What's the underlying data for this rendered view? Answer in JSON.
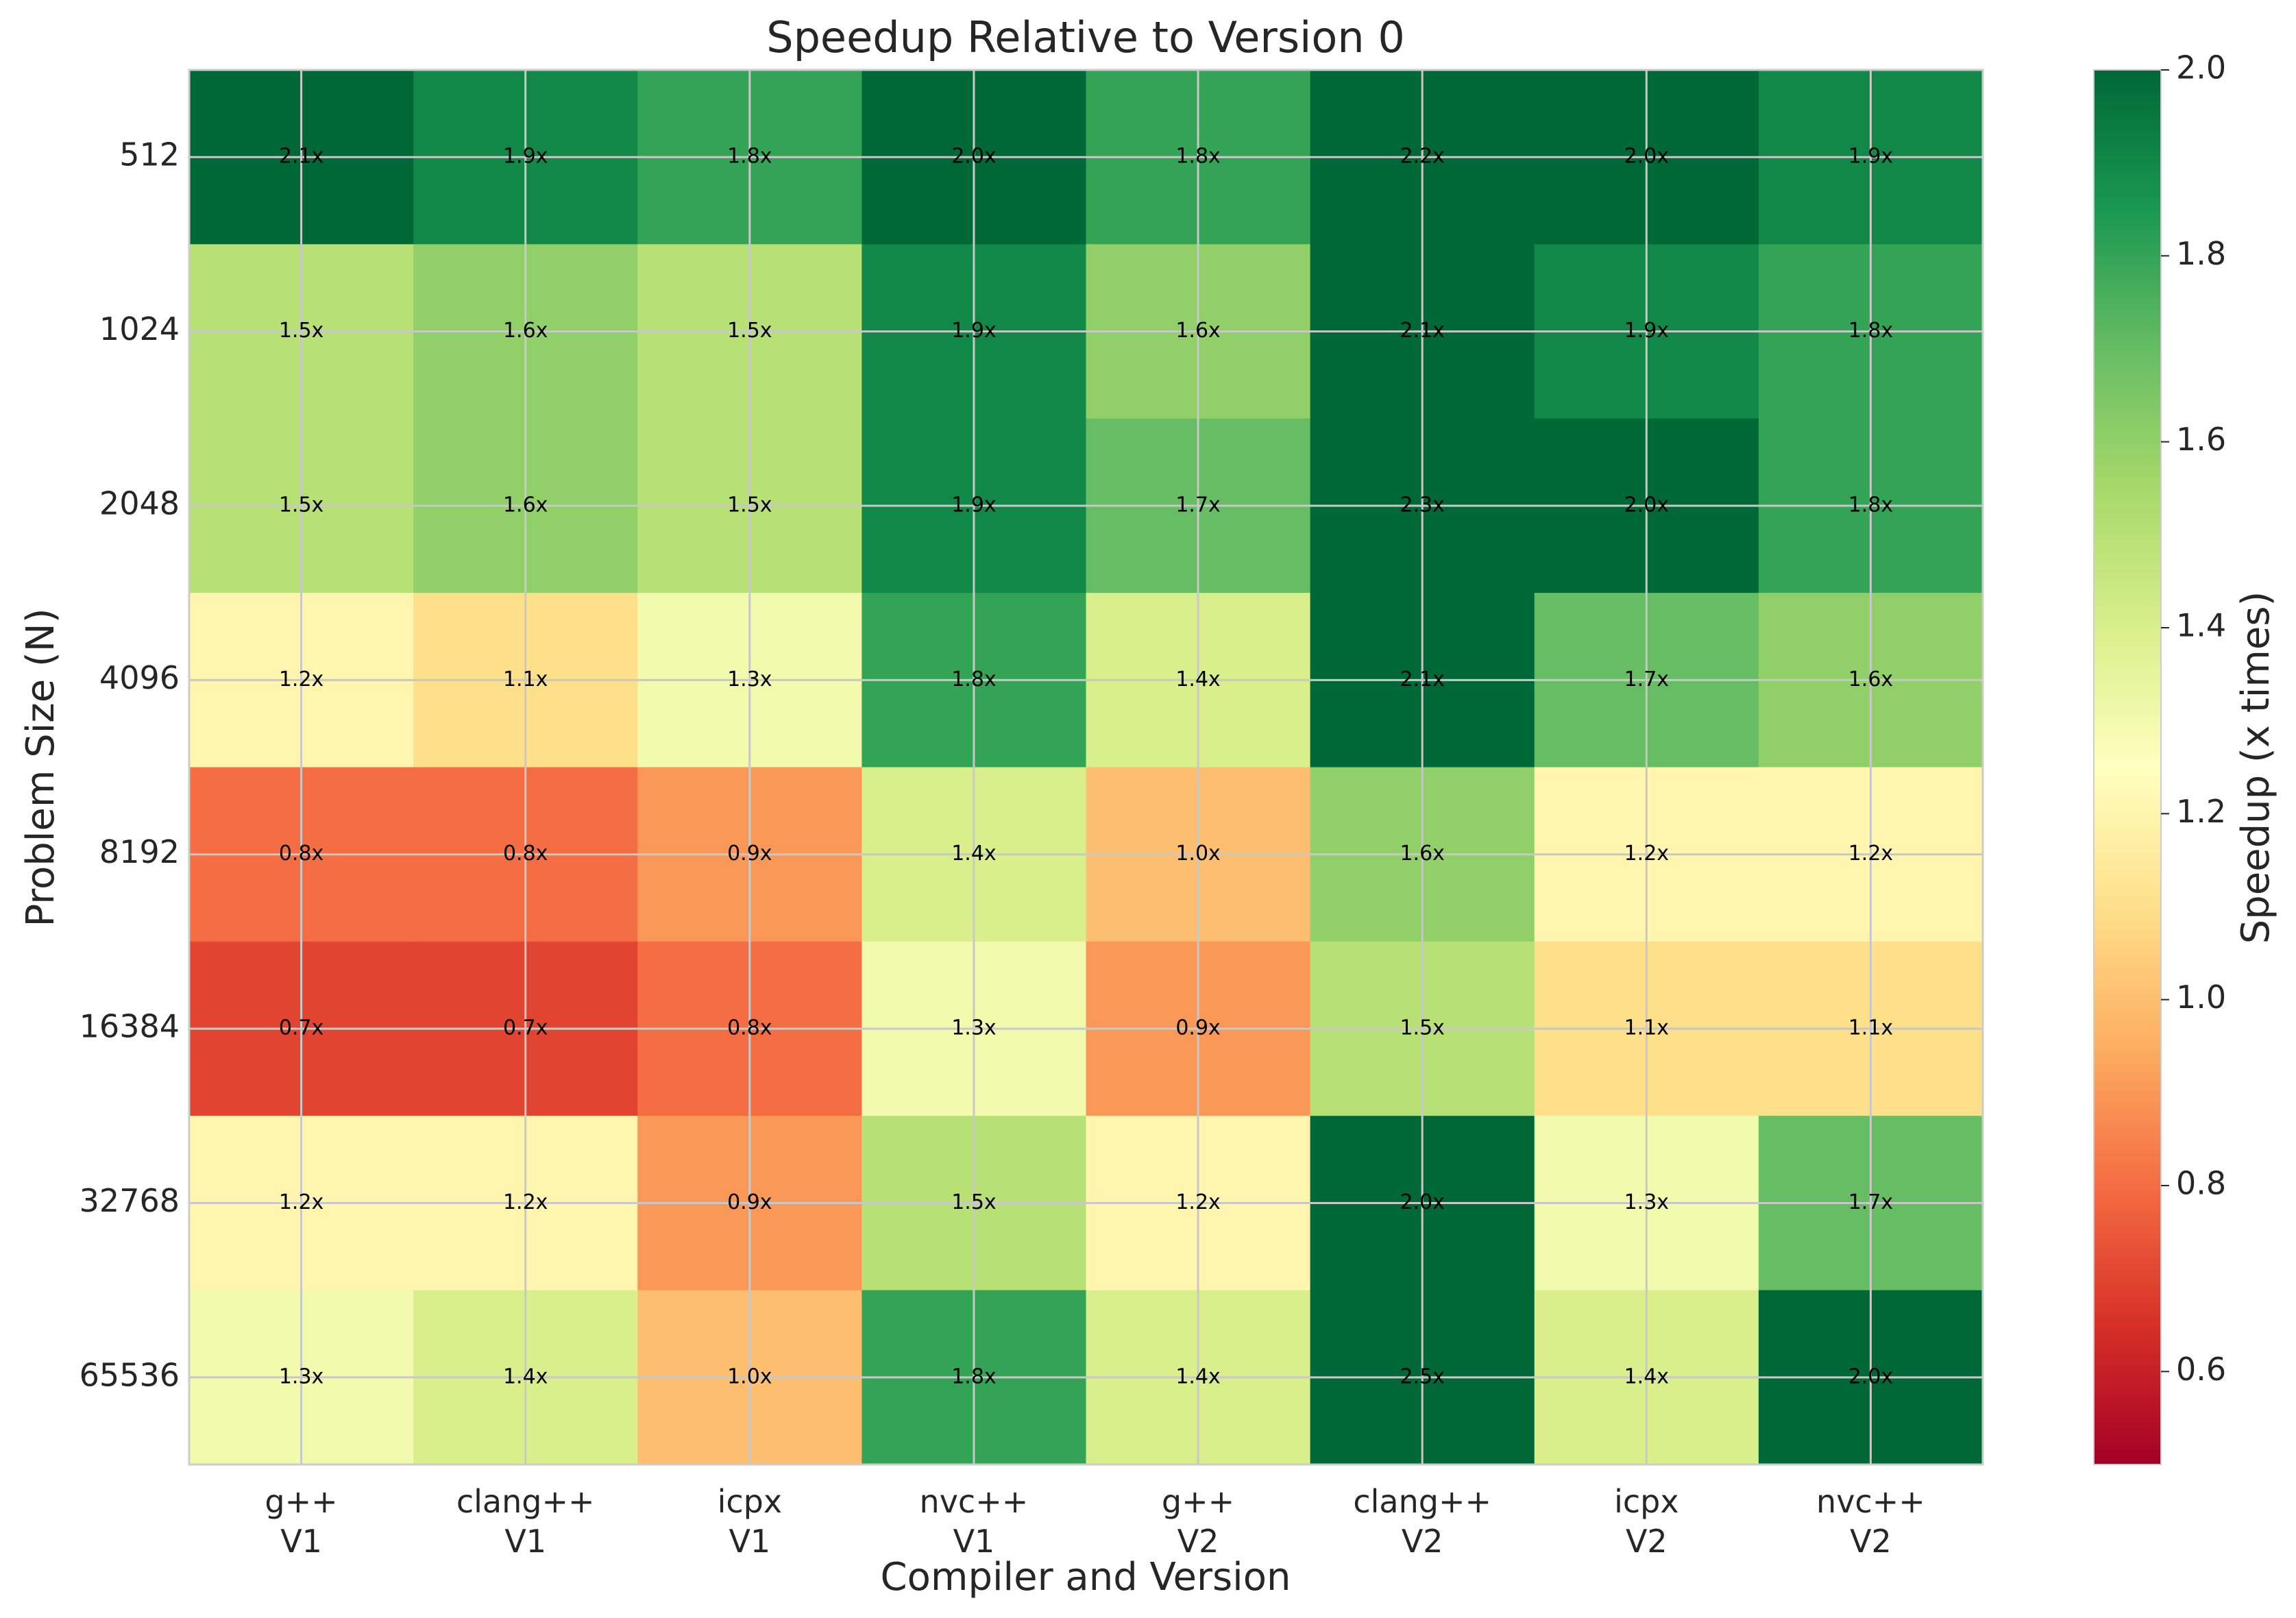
{
  "chart_data": {
    "type": "heatmap",
    "title": "Speedup Relative to Version 0",
    "xlabel": "Compiler and Version",
    "ylabel": "Problem Size (N)",
    "x_categories": [
      {
        "compiler": "g++",
        "version": "V1"
      },
      {
        "compiler": "clang++",
        "version": "V1"
      },
      {
        "compiler": "icpx",
        "version": "V1"
      },
      {
        "compiler": "nvc++",
        "version": "V1"
      },
      {
        "compiler": "g++",
        "version": "V2"
      },
      {
        "compiler": "clang++",
        "version": "V2"
      },
      {
        "compiler": "icpx",
        "version": "V2"
      },
      {
        "compiler": "nvc++",
        "version": "V2"
      }
    ],
    "y_categories": [
      "512",
      "1024",
      "2048",
      "4096",
      "8192",
      "16384",
      "32768",
      "65536"
    ],
    "values": [
      [
        2.1,
        1.9,
        1.8,
        2.0,
        1.8,
        2.2,
        2.0,
        1.9
      ],
      [
        1.5,
        1.6,
        1.5,
        1.9,
        1.6,
        2.1,
        1.9,
        1.8
      ],
      [
        1.5,
        1.6,
        1.5,
        1.9,
        1.7,
        2.3,
        2.0,
        1.8
      ],
      [
        1.2,
        1.1,
        1.3,
        1.8,
        1.4,
        2.1,
        1.7,
        1.6
      ],
      [
        0.8,
        0.8,
        0.9,
        1.4,
        1.0,
        1.6,
        1.2,
        1.2
      ],
      [
        0.7,
        0.7,
        0.8,
        1.3,
        0.9,
        1.5,
        1.1,
        1.1
      ],
      [
        1.2,
        1.2,
        0.9,
        1.5,
        1.2,
        2.0,
        1.3,
        1.7
      ],
      [
        1.3,
        1.4,
        1.0,
        1.8,
        1.4,
        2.5,
        1.4,
        2.0
      ]
    ],
    "value_suffix": "x",
    "colorbar": {
      "label": "Speedup (x times)",
      "range": [
        0.5,
        2.0
      ],
      "ticks": [
        "0.6",
        "0.8",
        "1.0",
        "1.2",
        "1.4",
        "1.6",
        "1.8",
        "2.0"
      ],
      "colormap": "RdYlGn"
    },
    "grid": true
  }
}
